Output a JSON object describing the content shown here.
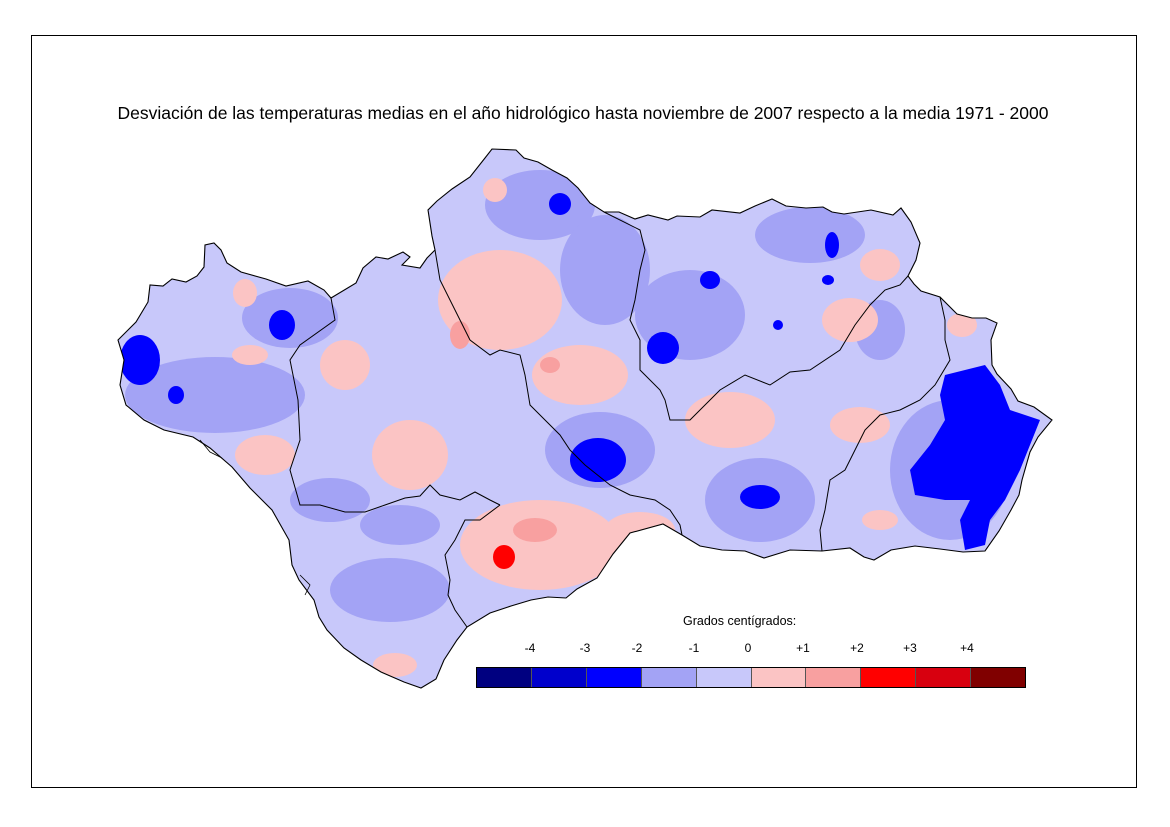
{
  "title": "Desviación de las temperaturas medias en el año hidrológico hasta noviembre de 2007 respecto a la media 1971 - 2000",
  "legend": {
    "title": "Grados centígrados:",
    "ticks": [
      "-4",
      "-3",
      "-2",
      "-1",
      "0",
      "+1",
      "+2",
      "+3",
      "+4"
    ],
    "classes": [
      {
        "color": "#000080"
      },
      {
        "color": "#0000cc"
      },
      {
        "color": "#0000ff"
      },
      {
        "color": "#a3a3f5"
      },
      {
        "color": "#c8c8fa"
      },
      {
        "color": "#fbc4c4"
      },
      {
        "color": "#f8a0a0"
      },
      {
        "color": "#ff0000"
      },
      {
        "color": "#d8000f"
      },
      {
        "color": "#800000"
      }
    ]
  },
  "colors": {
    "base": "#c8c8fa",
    "cool": "#a3a3f5",
    "cold": "#0000ff",
    "warm": "#fbc4c4",
    "warmer": "#f8a0a0",
    "hot": "#ff0000",
    "border": "#000000"
  }
}
